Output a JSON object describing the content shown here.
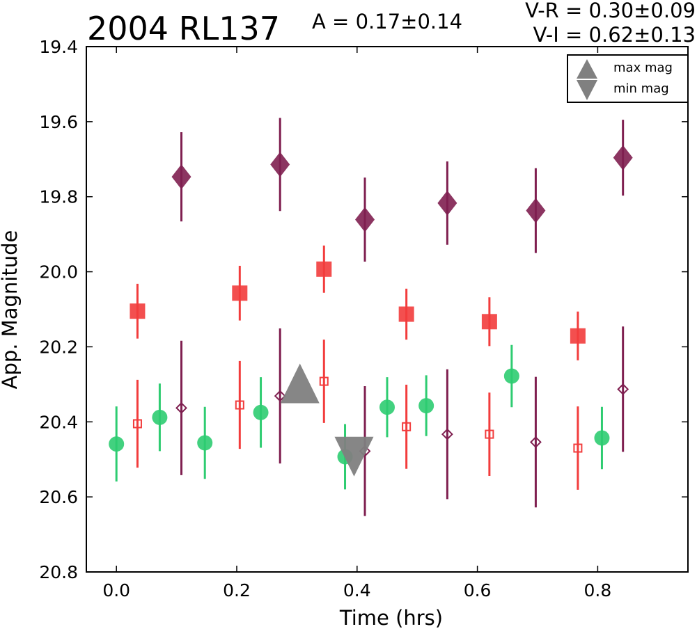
{
  "chart_data": {
    "type": "scatter",
    "title": "2004 RL137",
    "amplitude_text": "A  = 0.17±0.14",
    "color_text_1": "V-R = 0.30±0.09",
    "color_text_2": "V-I  = 0.62±0.13",
    "xlabel": "Time (hrs)",
    "ylabel": "App. Magnitude",
    "xlim": [
      -0.05,
      0.95
    ],
    "ylim": [
      20.8,
      19.4
    ],
    "y_inverted": true,
    "xticks": [
      "0.0",
      "0.2",
      "0.4",
      "0.6",
      "0.8"
    ],
    "xtick_values": [
      0.0,
      0.2,
      0.4,
      0.6,
      0.8
    ],
    "yticks": [
      "19.4",
      "19.6",
      "19.8",
      "20.0",
      "20.2",
      "20.4",
      "20.6",
      "20.8"
    ],
    "ytick_values": [
      19.4,
      19.6,
      19.8,
      20.0,
      20.2,
      20.4,
      20.6,
      20.8
    ],
    "grid": false,
    "legend_position": "top-right",
    "legend": [
      {
        "label": "max mag",
        "marker": "triangle-up",
        "color": "#808080"
      },
      {
        "label": "min mag",
        "marker": "triangle-down",
        "color": "#808080"
      }
    ],
    "series": [
      {
        "marker": "circle-filled",
        "color": "#2ecc71",
        "x": [
          0.0,
          0.072,
          0.147,
          0.24,
          0.38,
          0.45,
          0.515,
          0.657,
          0.807
        ],
        "y": [
          20.459,
          20.388,
          20.456,
          20.375,
          20.493,
          20.361,
          20.357,
          20.278,
          20.443
        ],
        "yerr": [
          0.1,
          0.09,
          0.096,
          0.094,
          0.087,
          0.08,
          0.081,
          0.083,
          0.083
        ]
      },
      {
        "marker": "square-filled",
        "color": "#f23c3c",
        "x": [
          0.035,
          0.205,
          0.345,
          0.482,
          0.62,
          0.767
        ],
        "y": [
          20.105,
          20.057,
          19.993,
          20.113,
          20.133,
          20.171
        ],
        "yerr": [
          0.073,
          0.073,
          0.063,
          0.068,
          0.065,
          0.065
        ]
      },
      {
        "marker": "square-open",
        "color": "#f23c3c",
        "x": [
          0.035,
          0.205,
          0.345,
          0.482,
          0.62,
          0.767
        ],
        "y": [
          20.405,
          20.355,
          20.292,
          20.413,
          20.433,
          20.47
        ],
        "yerr": [
          0.117,
          0.117,
          0.111,
          0.112,
          0.111,
          0.111
        ]
      },
      {
        "marker": "diamond-filled",
        "color": "#7f1f50",
        "x": [
          0.108,
          0.272,
          0.413,
          0.55,
          0.697,
          0.842
        ],
        "y": [
          19.747,
          19.714,
          19.861,
          19.817,
          19.837,
          19.696
        ],
        "yerr": [
          0.119,
          0.124,
          0.112,
          0.111,
          0.113,
          0.101
        ]
      },
      {
        "marker": "diamond-open",
        "color": "#7f1f50",
        "x": [
          0.108,
          0.272,
          0.413,
          0.55,
          0.697,
          0.842
        ],
        "y": [
          20.363,
          20.331,
          20.478,
          20.433,
          20.454,
          20.313
        ],
        "yerr": [
          0.179,
          0.18,
          0.173,
          0.173,
          0.174,
          0.167
        ]
      }
    ],
    "extrema_markers": [
      {
        "label": "max mag",
        "marker": "triangle-up",
        "x": 0.305,
        "y": 20.315,
        "color": "#808080"
      },
      {
        "label": "min mag",
        "marker": "triangle-down",
        "x": 0.395,
        "y": 20.475,
        "color": "#808080"
      }
    ]
  }
}
